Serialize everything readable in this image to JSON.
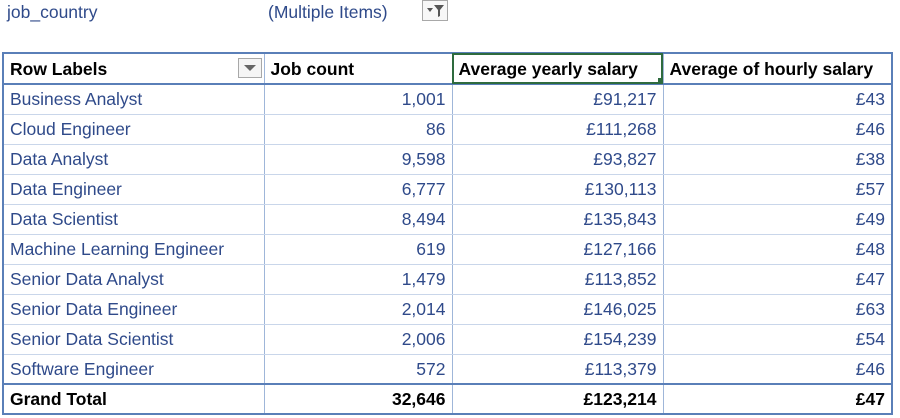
{
  "filter": {
    "field": "job_country",
    "value": "(Multiple Items)",
    "button_icon": "filter-dropdown-icon"
  },
  "pivot": {
    "headers": {
      "row_labels": "Row Labels",
      "job_count": "Job count",
      "avg_yearly": "Average yearly salary",
      "avg_hourly": "Average of hourly salary"
    },
    "rows": [
      {
        "label": "Business Analyst",
        "count": "1,001",
        "yearly": "£91,217",
        "hourly": "£43"
      },
      {
        "label": "Cloud Engineer",
        "count": "86",
        "yearly": "£111,268",
        "hourly": "£46"
      },
      {
        "label": "Data Analyst",
        "count": "9,598",
        "yearly": "£93,827",
        "hourly": "£38"
      },
      {
        "label": "Data Engineer",
        "count": "6,777",
        "yearly": "£130,113",
        "hourly": "£57"
      },
      {
        "label": "Data Scientist",
        "count": "8,494",
        "yearly": "£135,843",
        "hourly": "£49"
      },
      {
        "label": "Machine Learning Engineer",
        "count": "619",
        "yearly": "£127,166",
        "hourly": "£48"
      },
      {
        "label": "Senior Data Analyst",
        "count": "1,479",
        "yearly": "£113,852",
        "hourly": "£47"
      },
      {
        "label": "Senior Data Engineer",
        "count": "2,014",
        "yearly": "£146,025",
        "hourly": "£63"
      },
      {
        "label": "Senior Data Scientist",
        "count": "2,006",
        "yearly": "£154,239",
        "hourly": "£54"
      },
      {
        "label": "Software Engineer",
        "count": "572",
        "yearly": "£113,379",
        "hourly": "£46"
      }
    ],
    "total": {
      "label": "Grand Total",
      "count": "32,646",
      "yearly": "£123,214",
      "hourly": "£47"
    }
  },
  "colors": {
    "label_text": "#2f4a8a",
    "table_border": "#5a7fb8",
    "selection": "#2e6b3e"
  }
}
